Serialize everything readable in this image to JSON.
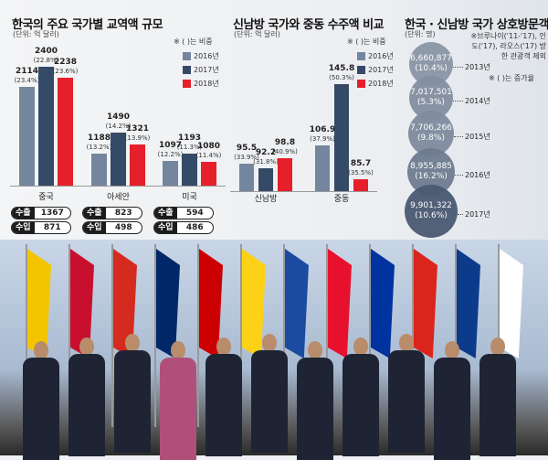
{
  "chart_data": [
    {
      "type": "bar",
      "title": "한국의 주요 국가별 교역액 규모",
      "unit": "(단위: 억 달러)",
      "note": "※ ( )는 비중",
      "categories": [
        "중국",
        "아세안",
        "미국"
      ],
      "series": [
        {
          "name": "2016년",
          "color": "#74869d",
          "values": [
            2114,
            1188,
            1097
          ],
          "labels": [
            "(23.4%)",
            "(13.2%)",
            "(12.2%)"
          ]
        },
        {
          "name": "2017년",
          "color": "#354a66",
          "values": [
            2400,
            1490,
            1193
          ],
          "labels": [
            "(22.8%)",
            "(14.2%)",
            "(11.3%)"
          ]
        },
        {
          "name": "2018년",
          "color": "#e5202a",
          "values": [
            2238,
            1321,
            1080
          ],
          "labels": [
            "(23.6%)",
            "(13.9%)",
            "(11.4%)"
          ]
        }
      ],
      "trade_2018": [
        {
          "export_label": "수출",
          "export": 1367,
          "import_label": "수입",
          "import": 871
        },
        {
          "export_label": "수출",
          "export": 823,
          "import_label": "수입",
          "import": 498
        },
        {
          "export_label": "수출",
          "export": 594,
          "import_label": "수입",
          "import": 486
        }
      ]
    },
    {
      "type": "bar",
      "title": "신남방 국가와 중동 수주액 비교",
      "unit": "(단위: 억 달러)",
      "note": "※ ( )는 비중",
      "categories": [
        "신남방",
        "중동"
      ],
      "series": [
        {
          "name": "2016년",
          "color": "#74869d",
          "values": [
            95.5,
            106.9
          ],
          "labels": [
            "(33.9%)",
            "(37.9%)"
          ]
        },
        {
          "name": "2017년",
          "color": "#354a66",
          "values": [
            92.2,
            145.8
          ],
          "labels": [
            "(31.8%)",
            "(50.3%)"
          ]
        },
        {
          "name": "2018년",
          "color": "#e5202a",
          "values": [
            98.8,
            85.7
          ],
          "labels": [
            "(40.9%)",
            "(35.5%)"
          ]
        }
      ]
    },
    {
      "type": "bubble",
      "title": "한국 · 신남방 국가 상호방문객",
      "unit": "(단위: 명)",
      "note": "※브루나이('11-'17), 인도('17), 라오스('17) 방한 관광객 제외",
      "note2": "※ ( )는 증가율",
      "points": [
        {
          "year": "2013년",
          "value": "6,660,877",
          "rate": "(10.4%)"
        },
        {
          "year": "2014년",
          "value": "7,017,501",
          "rate": "(5.3%)"
        },
        {
          "year": "2015년",
          "value": "7,706,266",
          "rate": "(9.8%)"
        },
        {
          "year": "2016년",
          "value": "8,955,885",
          "rate": "(16.2%)"
        },
        {
          "year": "2017년",
          "value": "9,901,322",
          "rate": "(10.6%)"
        }
      ]
    }
  ]
}
